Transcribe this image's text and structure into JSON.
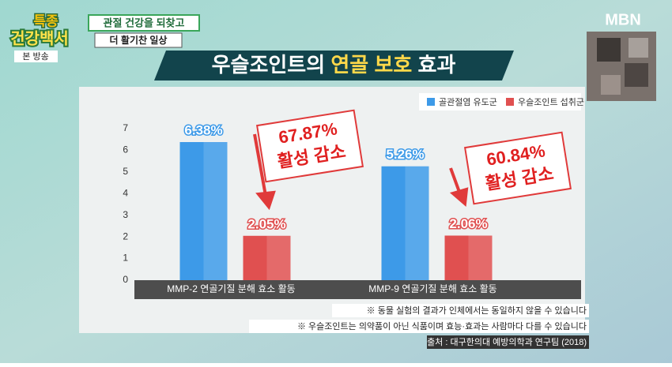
{
  "show": {
    "logo_top": "특종",
    "logo_bottom": "건강백서",
    "caption_1": "관절 건강을 되찾고",
    "caption_2": "더 활기찬 일상",
    "badge": "본 방송",
    "channel": "MBN"
  },
  "chart_data": {
    "type": "bar",
    "title": [
      "우슬조인트의",
      "연골 보호",
      "효과"
    ],
    "categories": [
      "MMP-2 연골기질 분해 효소 활동",
      "MMP-9 연골기질 분해 효소 활동"
    ],
    "series": [
      {
        "name": "골관절염 유도군",
        "color": "#3d9ae8",
        "values": [
          6.38,
          5.26
        ],
        "value_labels": [
          "6.38%",
          "5.26%"
        ]
      },
      {
        "name": "우슬조인트 섭취군",
        "color": "#e05050",
        "values": [
          2.05,
          2.06
        ],
        "value_labels": [
          "2.05%",
          "2.06%"
        ]
      }
    ],
    "ylim": [
      0,
      7
    ],
    "yticks": [
      0,
      1,
      2,
      3,
      4,
      5,
      6,
      7
    ],
    "grid": false,
    "legend": "top-right",
    "annotations": [
      {
        "value": "67.87%",
        "text": "활성 감소"
      },
      {
        "value": "60.84%",
        "text": "활성 감소"
      }
    ],
    "notes": [
      "※ 동물 실험의 결과가 인체에서는 동일하지 않을 수 있습니다",
      "※ 우슬조인트는 의약품이 아닌 식품이며 효능·효과는 사람마다 다를 수 있습니다"
    ],
    "source": "출처 : 대구한의대 예방의학과 연구팀 (2018)"
  }
}
